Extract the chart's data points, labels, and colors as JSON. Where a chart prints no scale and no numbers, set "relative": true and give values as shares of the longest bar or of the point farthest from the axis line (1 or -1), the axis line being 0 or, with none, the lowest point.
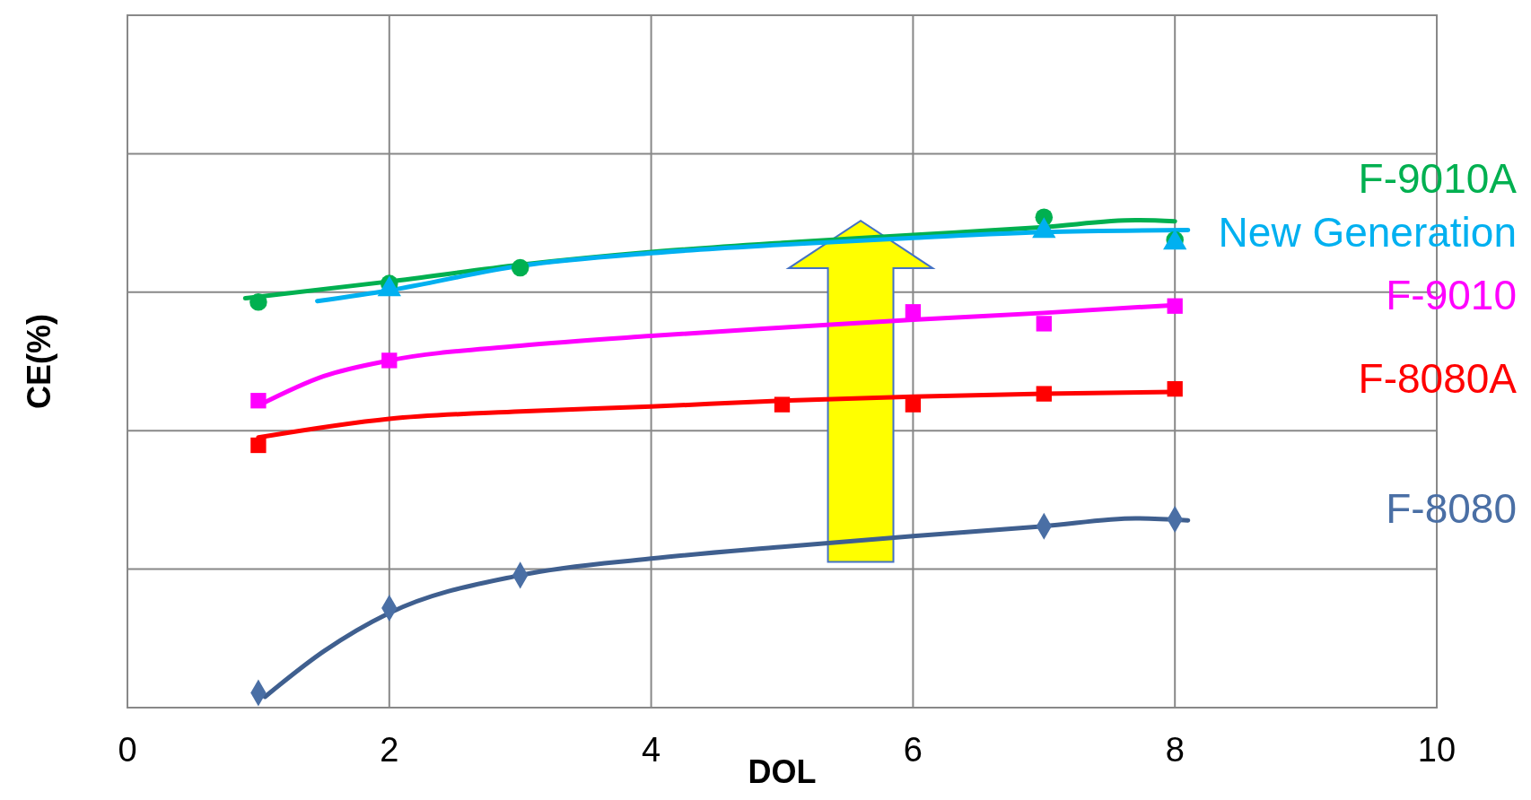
{
  "chart_data": {
    "type": "scatter",
    "relative": true,
    "xlabel": "DOL",
    "ylabel": "CE(%)",
    "xlim": [
      0,
      10
    ],
    "xticks": [
      0,
      2,
      4,
      6,
      8,
      10
    ],
    "grid": true,
    "series": [
      {
        "name": "F-8080",
        "color": "#4a6fa5",
        "marker": "diamond",
        "x": [
          1,
          2,
          3,
          7,
          8
        ],
        "values": [
          0.03,
          0.203,
          0.27,
          0.37,
          0.384
        ]
      },
      {
        "name": "F-8080A",
        "color": "#ff0000",
        "marker": "square",
        "x": [
          1,
          5,
          6,
          7,
          8
        ],
        "values": [
          0.535,
          0.618,
          0.618,
          0.64,
          0.65
        ]
      },
      {
        "name": "F-9010",
        "color": "#ff00ff",
        "marker": "square",
        "x": [
          1,
          2,
          6,
          7,
          8
        ],
        "values": [
          0.626,
          0.708,
          0.807,
          0.783,
          0.819
        ]
      },
      {
        "name": "F-9010A",
        "color": "#00b050",
        "marker": "circle",
        "x": [
          1,
          2,
          3,
          7,
          8
        ],
        "values": [
          0.827,
          0.865,
          0.897,
          1,
          0.954
        ]
      },
      {
        "name": "New Generation",
        "color": "#00b0f0",
        "marker": "triangle",
        "x": [
          2,
          7,
          8
        ],
        "values": [
          0.853,
          0.972,
          0.948
        ]
      },
      {
        "type": "line",
        "color": "#3f5f8f",
        "marker": "none",
        "x": [
          1.05,
          1.5,
          2,
          3,
          4,
          5,
          6,
          7,
          7.7,
          8.1
        ],
        "values": [
          0.022,
          0.115,
          0.193,
          0.27,
          0.304,
          0.328,
          0.35,
          0.37,
          0.386,
          0.382
        ]
      },
      {
        "type": "line",
        "color": "#ff0000",
        "marker": "none",
        "x": [
          1,
          2,
          3,
          4,
          5,
          6,
          7,
          8
        ],
        "values": [
          0.551,
          0.589,
          0.604,
          0.614,
          0.626,
          0.634,
          0.64,
          0.644
        ]
      },
      {
        "type": "line",
        "color": "#ff00ff",
        "marker": "none",
        "x": [
          1,
          1.5,
          2,
          3,
          4,
          5,
          6,
          7,
          8
        ],
        "values": [
          0.616,
          0.676,
          0.708,
          0.738,
          0.758,
          0.775,
          0.791,
          0.805,
          0.821
        ]
      },
      {
        "type": "line",
        "color": "#00b050",
        "marker": "none",
        "x": [
          0.9,
          2,
          3,
          4,
          5,
          6,
          7,
          7.7,
          8
        ],
        "values": [
          0.835,
          0.869,
          0.903,
          0.929,
          0.948,
          0.964,
          0.98,
          0.994,
          0.992
        ]
      },
      {
        "type": "line",
        "color": "#00b0f0",
        "marker": "none",
        "x": [
          1.45,
          2,
          3,
          4,
          5,
          6,
          7,
          8.1
        ],
        "values": [
          0.829,
          0.851,
          0.901,
          0.927,
          0.944,
          0.958,
          0.97,
          0.974
        ]
      }
    ]
  }
}
